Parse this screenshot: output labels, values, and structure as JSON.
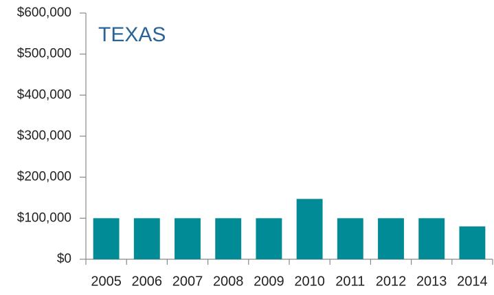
{
  "chart_data": {
    "type": "bar",
    "title": "TEXAS",
    "categories": [
      "2005",
      "2006",
      "2007",
      "2008",
      "2009",
      "2010",
      "2011",
      "2012",
      "2013",
      "2014"
    ],
    "values": [
      100000,
      100000,
      100000,
      100000,
      100000,
      147000,
      100000,
      100000,
      100000,
      80000
    ],
    "color": "#008b96",
    "ylim": [
      0,
      600000
    ],
    "yticks": [
      {
        "value": 0,
        "label": "$0"
      },
      {
        "value": 100000,
        "label": "$100,000"
      },
      {
        "value": 200000,
        "label": "$200,000"
      },
      {
        "value": 300000,
        "label": "$300,000"
      },
      {
        "value": 400000,
        "label": "$400,000"
      },
      {
        "value": 500000,
        "label": "$500,000"
      },
      {
        "value": 600000,
        "label": "$600,000"
      }
    ],
    "grid": false
  }
}
